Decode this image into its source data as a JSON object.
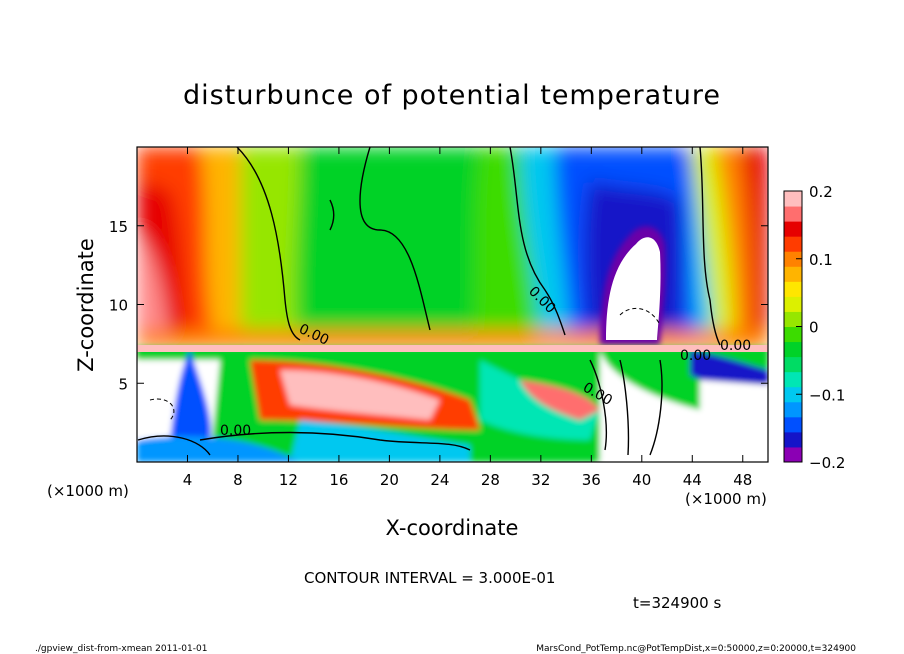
{
  "chart_data": {
    "type": "heatmap",
    "title": "disturbunce of potential temperature",
    "xlabel": "X-coordinate",
    "ylabel": "Z-coordinate",
    "x_unit_left": "(×1000 m)",
    "x_unit_right": "(×1000 m)",
    "xlim": [
      0,
      50
    ],
    "ylim": [
      0,
      20
    ],
    "x_ticks": [
      4,
      8,
      12,
      16,
      20,
      24,
      28,
      32,
      36,
      40,
      44,
      48
    ],
    "y_ticks": [
      5,
      10,
      15
    ],
    "colorbar": {
      "range": [
        -0.2,
        0.2
      ],
      "tick_values": [
        0.2,
        0.1,
        0,
        -0.1,
        -0.2
      ],
      "tick_labels": [
        "0.2",
        "0.1",
        "0",
        "−0.1",
        "−0.2"
      ],
      "colors": [
        "#8b00b4",
        "#1414c8",
        "#0050ff",
        "#0096ff",
        "#00c8f0",
        "#00e6b4",
        "#00dc64",
        "#00d228",
        "#3cdc00",
        "#96e600",
        "#dcf000",
        "#ffe600",
        "#ffb400",
        "#ff8200",
        "#ff3c00",
        "#e60000",
        "#ff6e6e",
        "#ffbebe"
      ]
    },
    "contour_labels": [
      "0.00",
      "0.00",
      "0.00",
      "0.00",
      "0.00",
      "0.00"
    ],
    "contour_interval": "CONTOUR INTERVAL = 3.000E-01",
    "time_label": "t=324900 s"
  },
  "footer": {
    "left": "./gpview_dist-from-xmean  2011-01-01",
    "right": "MarsCond_PotTemp.nc@PotTempDist,x=0:50000,z=0:20000,t=324900"
  }
}
